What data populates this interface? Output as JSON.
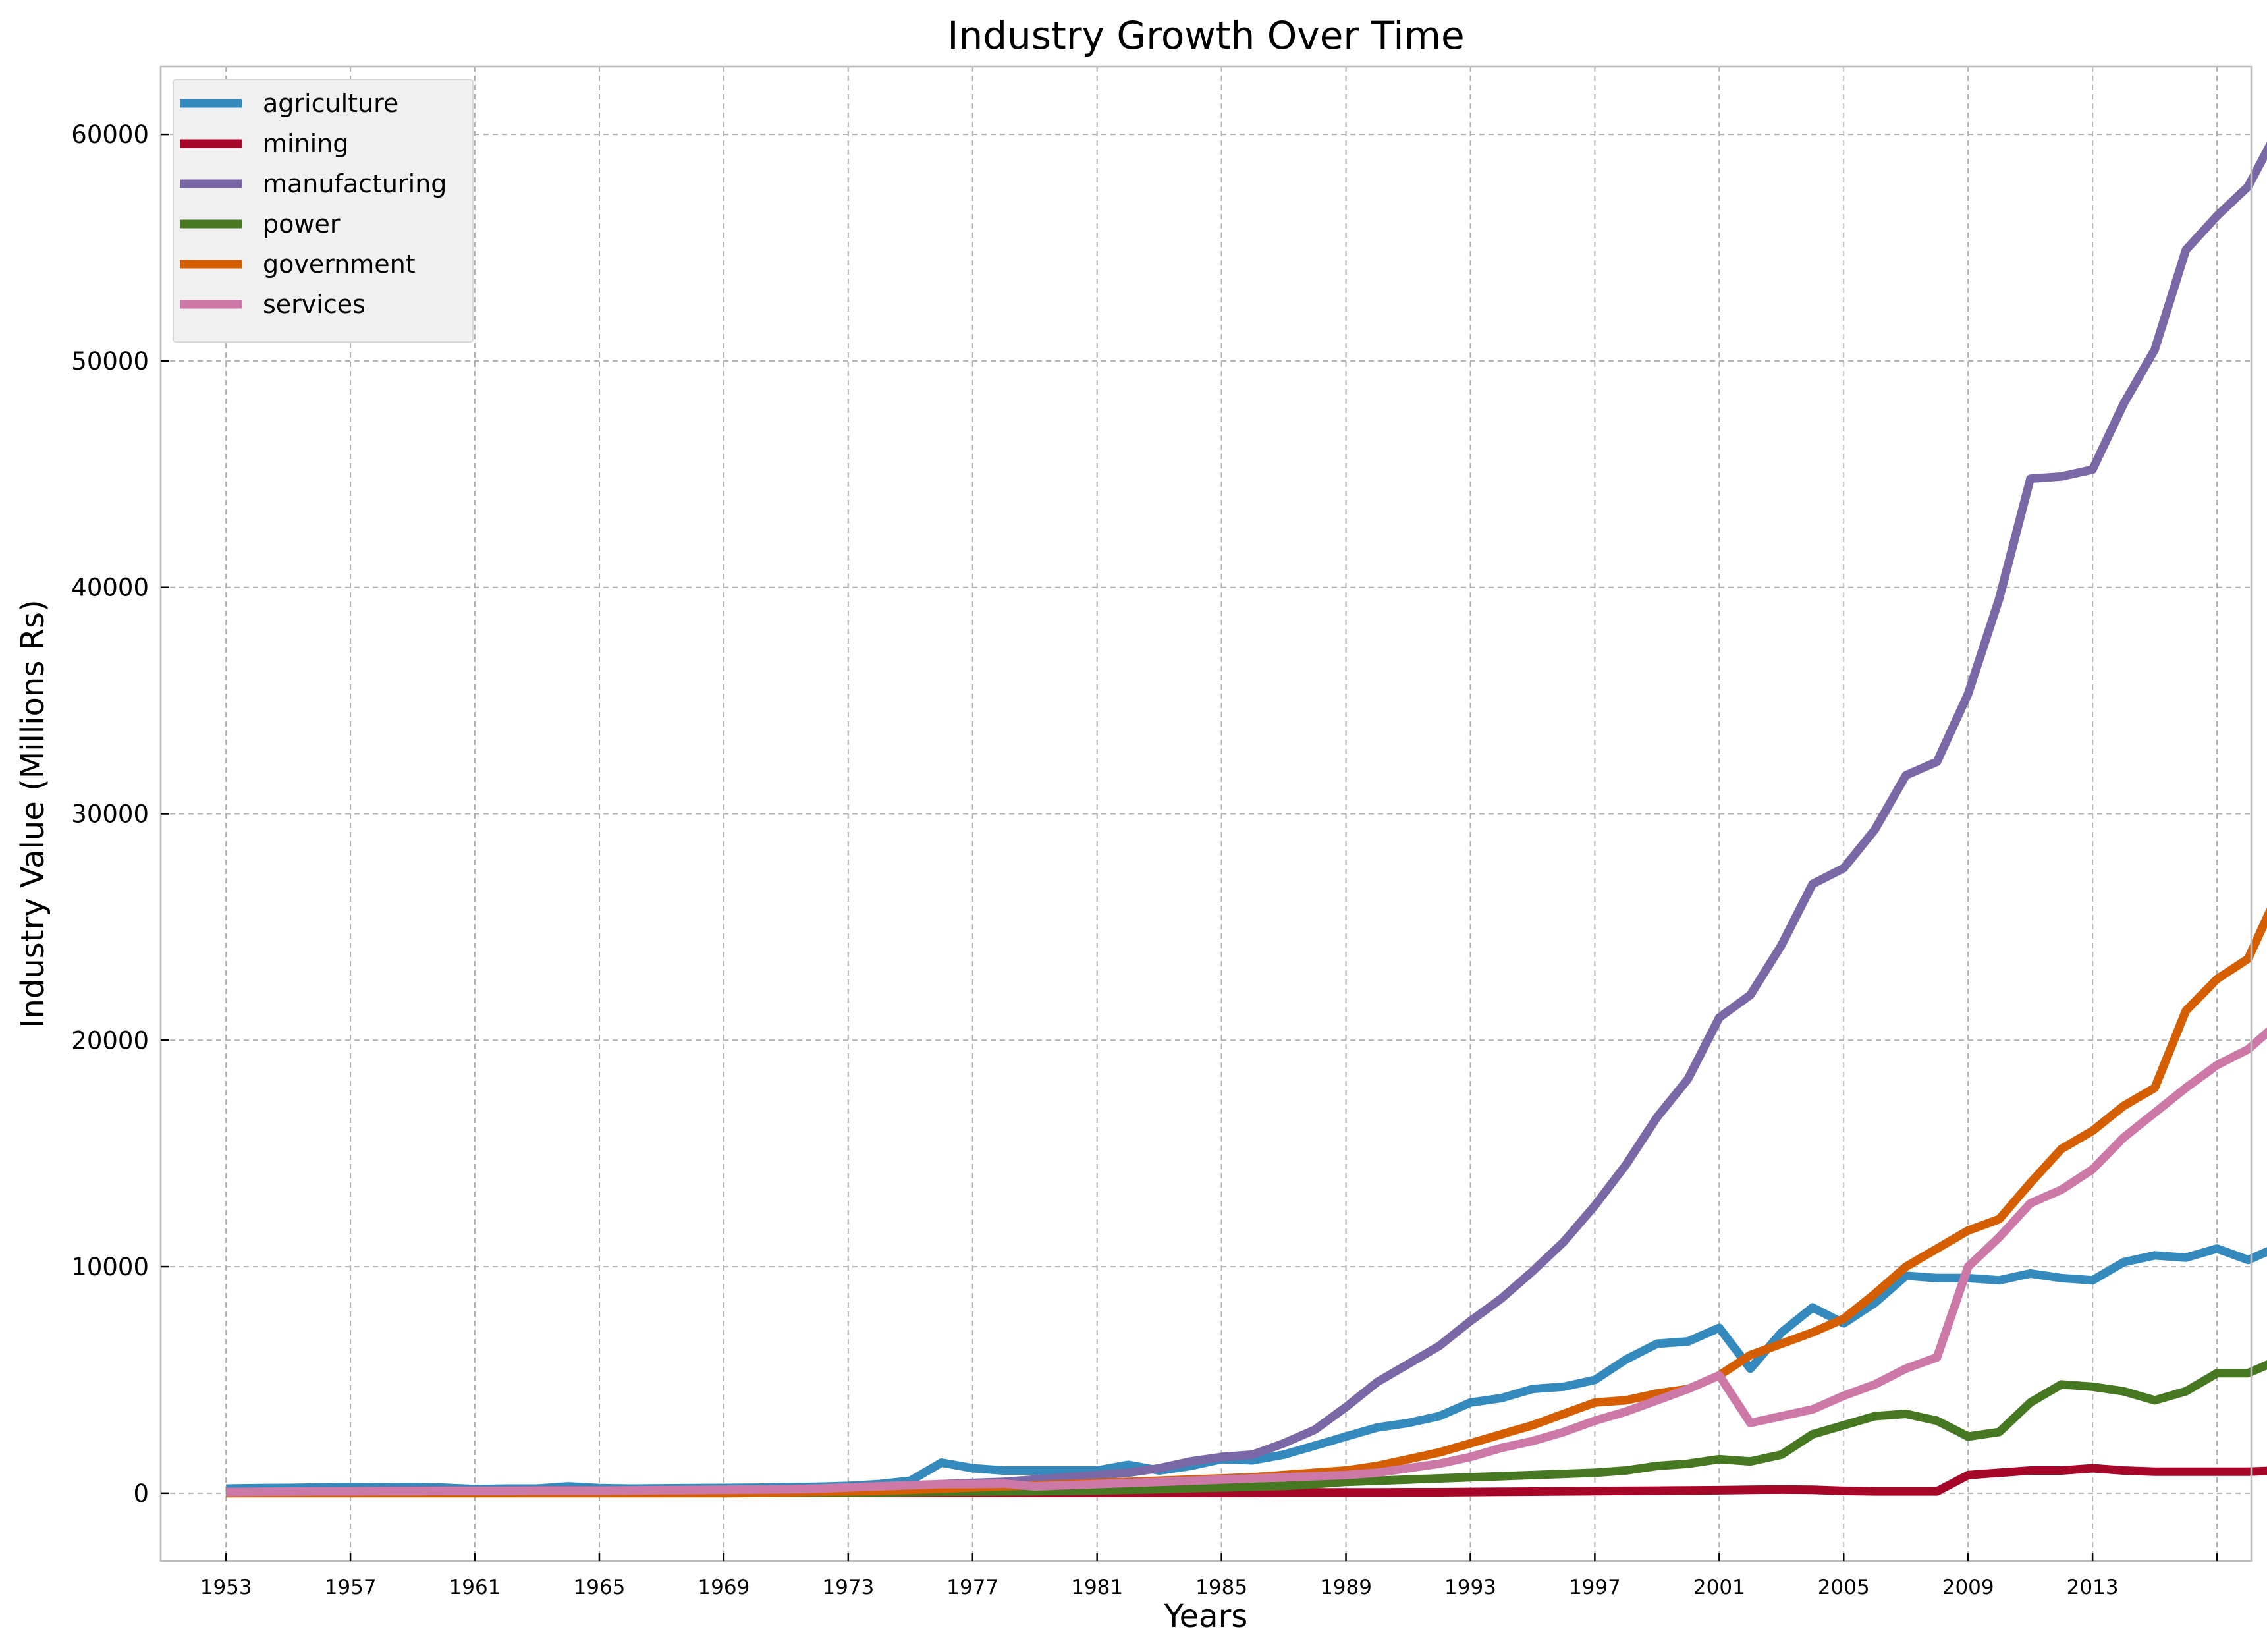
{
  "chart_data": {
    "type": "line",
    "title": "Industry Growth Over Time",
    "xlabel": "Years",
    "ylabel": "Industry Value (Millions Rs)",
    "xlim": [
      1950.9,
      2018.1
    ],
    "ylim": [
      -3000,
      63000
    ],
    "xticks": [
      1953,
      1957,
      1961,
      1965,
      1969,
      1973,
      1977,
      1981,
      1985,
      1989,
      1993,
      1997,
      2001,
      2005,
      2009,
      2013,
      2017
    ],
    "xtick_labels": [
      "1953",
      "1957",
      "1961",
      "1965",
      "1969",
      "1973",
      "1977",
      "1981",
      "1985",
      "1989",
      "1993",
      "1997",
      "2001",
      "2005",
      "2009",
      "2013",
      ""
    ],
    "yticks": [
      0,
      10000,
      20000,
      30000,
      40000,
      50000,
      60000
    ],
    "ytick_labels": [
      "0",
      "10000",
      "20000",
      "30000",
      "40000",
      "50000",
      "60000"
    ],
    "grid": true,
    "legend_position": "upper-left",
    "x_start": 1953,
    "series": [
      {
        "name": "agriculture",
        "color": "#348abd",
        "values": [
          200,
          220,
          230,
          250,
          260,
          250,
          260,
          240,
          180,
          200,
          200,
          300,
          220,
          200,
          210,
          220,
          230,
          240,
          260,
          280,
          320,
          400,
          550,
          1350,
          1100,
          1000,
          1000,
          1000,
          1000,
          1250,
          1000,
          1200,
          1500,
          1450,
          1700,
          2100,
          2500,
          2900,
          3100,
          3400,
          4000,
          4200,
          4600,
          4700,
          5000,
          5900,
          6600,
          6700,
          7300,
          5500,
          7100,
          8200,
          7500,
          8400,
          9600,
          9500,
          9500,
          9400,
          9700,
          9500,
          9400,
          10200,
          10500,
          10400,
          10800,
          10300,
          10900
        ]
      },
      {
        "name": "mining",
        "color": "#a60628",
        "values": [
          10,
          10,
          10,
          10,
          10,
          10,
          10,
          10,
          10,
          10,
          10,
          10,
          10,
          10,
          10,
          10,
          10,
          10,
          10,
          10,
          10,
          10,
          10,
          10,
          10,
          10,
          20,
          20,
          20,
          20,
          20,
          20,
          20,
          20,
          30,
          30,
          30,
          30,
          40,
          40,
          50,
          60,
          70,
          80,
          90,
          100,
          110,
          120,
          130,
          150,
          160,
          150,
          100,
          80,
          80,
          80,
          800,
          900,
          1000,
          1000,
          1100,
          1000,
          950,
          950,
          950,
          950,
          1000
        ]
      },
      {
        "name": "manufacturing",
        "color": "#7a68a6",
        "values": [
          50,
          60,
          70,
          80,
          90,
          100,
          110,
          120,
          100,
          110,
          120,
          130,
          110,
          110,
          120,
          130,
          140,
          150,
          160,
          170,
          200,
          250,
          300,
          400,
          450,
          500,
          600,
          700,
          800,
          900,
          1100,
          1400,
          1600,
          1700,
          2200,
          2800,
          3800,
          4900,
          5700,
          6500,
          7600,
          8600,
          9800,
          11100,
          12700,
          14500,
          16600,
          18300,
          21000,
          22000,
          24200,
          26900,
          27600,
          29300,
          31700,
          32300,
          35300,
          39500,
          44800,
          44900,
          45200,
          48100,
          50500,
          54900,
          56400,
          57700,
          60300
        ]
      },
      {
        "name": "power",
        "color": "#467821",
        "values": [
          5,
          5,
          5,
          5,
          5,
          5,
          5,
          5,
          5,
          5,
          5,
          5,
          5,
          5,
          5,
          5,
          5,
          10,
          10,
          10,
          20,
          30,
          50,
          60,
          70,
          80,
          90,
          100,
          120,
          150,
          180,
          220,
          250,
          280,
          320,
          400,
          500,
          550,
          600,
          650,
          700,
          750,
          800,
          850,
          900,
          1000,
          1200,
          1300,
          1500,
          1400,
          1700,
          2600,
          3000,
          3400,
          3500,
          3200,
          2500,
          2700,
          4000,
          4800,
          4700,
          4500,
          4100,
          4500,
          5300,
          5300,
          5900
        ]
      },
      {
        "name": "government",
        "color": "#d55e00",
        "values": [
          10,
          10,
          10,
          10,
          10,
          10,
          10,
          10,
          10,
          10,
          10,
          10,
          10,
          10,
          10,
          20,
          20,
          30,
          40,
          60,
          80,
          100,
          150,
          200,
          250,
          300,
          350,
          400,
          450,
          500,
          550,
          600,
          650,
          700,
          800,
          900,
          1000,
          1200,
          1500,
          1800,
          2200,
          2600,
          3000,
          3500,
          4000,
          4100,
          4400,
          4600,
          5200,
          6100,
          6600,
          7100,
          7700,
          8800,
          10000,
          10800,
          11600,
          12100,
          13700,
          15200,
          16000,
          17100,
          17900,
          21300,
          22700,
          23600,
          26600
        ]
      },
      {
        "name": "services",
        "color": "#cc79a7",
        "values": [
          50,
          60,
          70,
          80,
          80,
          90,
          90,
          100,
          100,
          100,
          110,
          110,
          110,
          120,
          130,
          140,
          150,
          160,
          170,
          200,
          250,
          300,
          350,
          400,
          400,
          420,
          300,
          350,
          400,
          450,
          500,
          550,
          600,
          650,
          700,
          750,
          800,
          900,
          1100,
          1300,
          1600,
          2000,
          2300,
          2700,
          3200,
          3600,
          4100,
          4600,
          5200,
          3100,
          3400,
          3700,
          4300,
          4800,
          5500,
          6000,
          10000,
          11300,
          12800,
          13400,
          14300,
          15700,
          16800,
          17900,
          18900,
          19600,
          20800
        ]
      }
    ]
  }
}
